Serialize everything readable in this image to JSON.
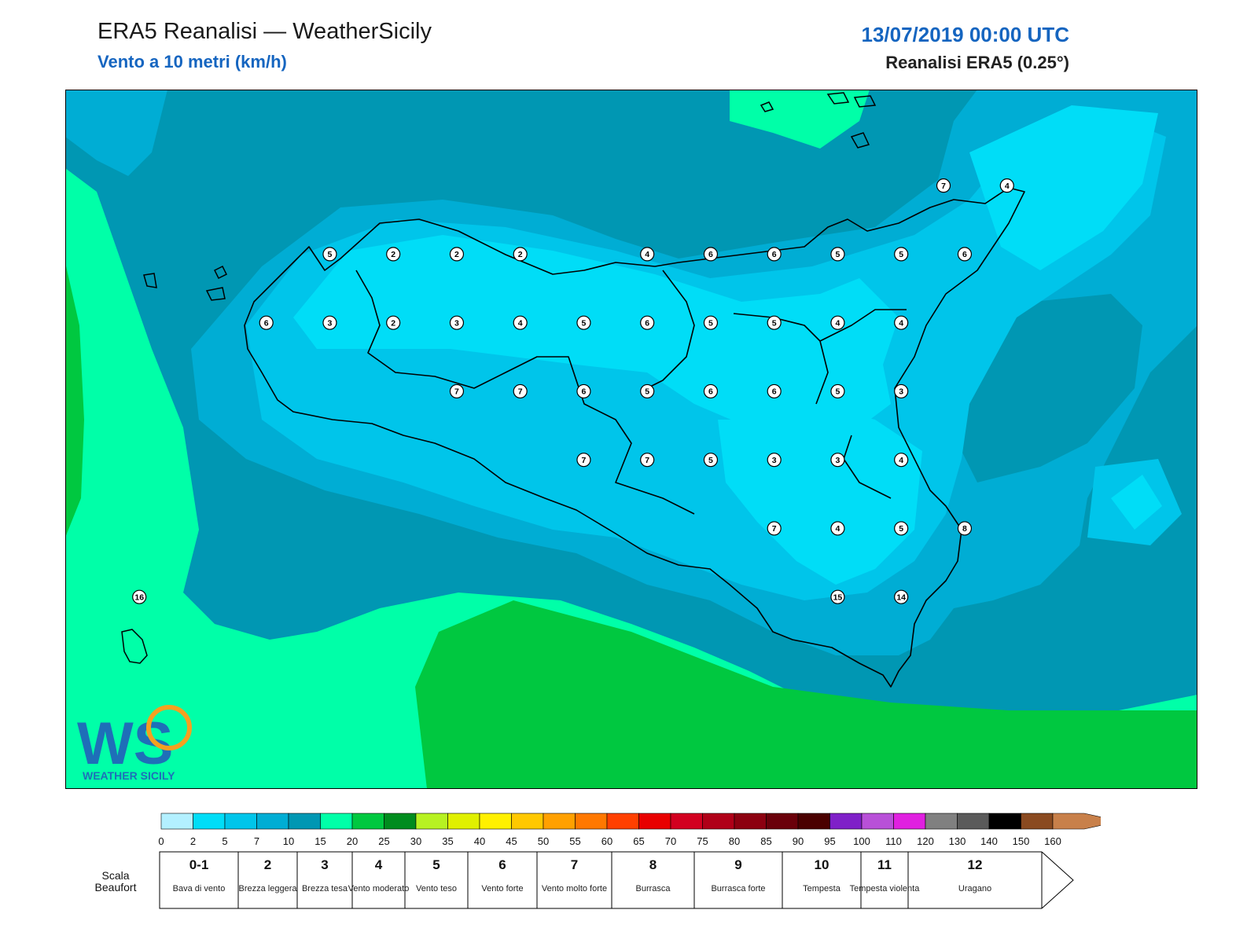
{
  "header": {
    "title": "ERA5 Reanalisi — WeatherSicily",
    "subtitle": "Vento a 10 metri (km/h)",
    "datetime": "13/07/2019 00:00 UTC",
    "source": "Reanalisi ERA5 (0.25°)"
  },
  "logo": {
    "text": "WS",
    "tagline": "WEATHER SICILY"
  },
  "colors": {
    "land_outline": "#000000",
    "band_0_2": "#b3f0ff",
    "band_2_5": "#00ddf7",
    "band_5_7": "#00c5ea",
    "band_7_10": "#00add4",
    "band_10_15": "#0097b3",
    "band_15_20": "#00ffa8",
    "band_20_25": "#00c840",
    "band_25_30": "#008c1e"
  },
  "colorbar": {
    "ticks": [
      "0",
      "2",
      "5",
      "7",
      "10",
      "15",
      "20",
      "25",
      "30",
      "35",
      "40",
      "45",
      "50",
      "55",
      "60",
      "65",
      "70",
      "75",
      "80",
      "85",
      "90",
      "95",
      "100",
      "110",
      "120",
      "130",
      "140",
      "150",
      "160"
    ],
    "colors": [
      "#b3f0ff",
      "#00ddf7",
      "#00c5ea",
      "#00add4",
      "#0097b3",
      "#00ffa8",
      "#00c840",
      "#008c1e",
      "#b7f222",
      "#e0f000",
      "#fff000",
      "#ffc800",
      "#ffa000",
      "#ff7800",
      "#ff4000",
      "#e80000",
      "#d20020",
      "#b00018",
      "#8c0010",
      "#6a000a",
      "#4a0000",
      "#7f20c8",
      "#b850d8",
      "#e020e0",
      "#808080",
      "#5a5a5a",
      "#000000",
      "#8a4a20",
      "#c8804a"
    ]
  },
  "beaufort": {
    "caption": "Scala Beaufort",
    "levels": [
      {
        "num": "0-1",
        "name": "Bava di vento"
      },
      {
        "num": "2",
        "name": "Brezza leggera"
      },
      {
        "num": "3",
        "name": "Brezza tesa"
      },
      {
        "num": "4",
        "name": "Vento moderato"
      },
      {
        "num": "5",
        "name": "Vento teso"
      },
      {
        "num": "6",
        "name": "Vento forte"
      },
      {
        "num": "7",
        "name": "Vento molto forte"
      },
      {
        "num": "8",
        "name": "Burrasca"
      },
      {
        "num": "9",
        "name": "Burrasca forte"
      },
      {
        "num": "10",
        "name": "Tempesta"
      },
      {
        "num": "11",
        "name": "Tempesta violenta"
      },
      {
        "num": "12",
        "name": "Uragano"
      }
    ]
  },
  "station_values": [
    {
      "label": "7",
      "lon": 15.65,
      "lat": 38.25
    },
    {
      "label": "4",
      "lon": 15.95,
      "lat": 38.25
    },
    {
      "label": "5",
      "lon": 12.75,
      "lat": 38.0
    },
    {
      "label": "2",
      "lon": 13.05,
      "lat": 38.0
    },
    {
      "label": "2",
      "lon": 13.35,
      "lat": 38.0
    },
    {
      "label": "2",
      "lon": 13.65,
      "lat": 38.0
    },
    {
      "label": "4",
      "lon": 14.25,
      "lat": 38.0
    },
    {
      "label": "6",
      "lon": 14.55,
      "lat": 38.0
    },
    {
      "label": "6",
      "lon": 14.85,
      "lat": 38.0
    },
    {
      "label": "5",
      "lon": 15.15,
      "lat": 38.0
    },
    {
      "label": "5",
      "lon": 15.45,
      "lat": 38.0
    },
    {
      "label": "6",
      "lon": 15.75,
      "lat": 38.0
    },
    {
      "label": "6",
      "lon": 12.45,
      "lat": 37.75
    },
    {
      "label": "3",
      "lon": 12.75,
      "lat": 37.75
    },
    {
      "label": "2",
      "lon": 13.05,
      "lat": 37.75
    },
    {
      "label": "3",
      "lon": 13.35,
      "lat": 37.75
    },
    {
      "label": "4",
      "lon": 13.65,
      "lat": 37.75
    },
    {
      "label": "5",
      "lon": 13.95,
      "lat": 37.75
    },
    {
      "label": "6",
      "lon": 14.25,
      "lat": 37.75
    },
    {
      "label": "5",
      "lon": 14.55,
      "lat": 37.75
    },
    {
      "label": "5",
      "lon": 14.85,
      "lat": 37.75
    },
    {
      "label": "4",
      "lon": 15.15,
      "lat": 37.75
    },
    {
      "label": "4",
      "lon": 15.45,
      "lat": 37.75
    },
    {
      "label": "7",
      "lon": 13.35,
      "lat": 37.5
    },
    {
      "label": "7",
      "lon": 13.65,
      "lat": 37.5
    },
    {
      "label": "6",
      "lon": 13.95,
      "lat": 37.5
    },
    {
      "label": "5",
      "lon": 14.25,
      "lat": 37.5
    },
    {
      "label": "6",
      "lon": 14.55,
      "lat": 37.5
    },
    {
      "label": "6",
      "lon": 14.85,
      "lat": 37.5
    },
    {
      "label": "5",
      "lon": 15.15,
      "lat": 37.5
    },
    {
      "label": "3",
      "lon": 15.45,
      "lat": 37.5
    },
    {
      "label": "7",
      "lon": 13.95,
      "lat": 37.25
    },
    {
      "label": "7",
      "lon": 14.25,
      "lat": 37.25
    },
    {
      "label": "5",
      "lon": 14.55,
      "lat": 37.25
    },
    {
      "label": "3",
      "lon": 14.85,
      "lat": 37.25
    },
    {
      "label": "3",
      "lon": 15.15,
      "lat": 37.25
    },
    {
      "label": "4",
      "lon": 15.45,
      "lat": 37.25
    },
    {
      "label": "7",
      "lon": 14.85,
      "lat": 37.0
    },
    {
      "label": "4",
      "lon": 15.15,
      "lat": 37.0
    },
    {
      "label": "5",
      "lon": 15.45,
      "lat": 37.0
    },
    {
      "label": "8",
      "lon": 15.75,
      "lat": 37.0
    },
    {
      "label": "16",
      "lon": 11.85,
      "lat": 36.75
    },
    {
      "label": "15",
      "lon": 15.15,
      "lat": 36.75
    },
    {
      "label": "14",
      "lon": 15.45,
      "lat": 36.75
    }
  ]
}
